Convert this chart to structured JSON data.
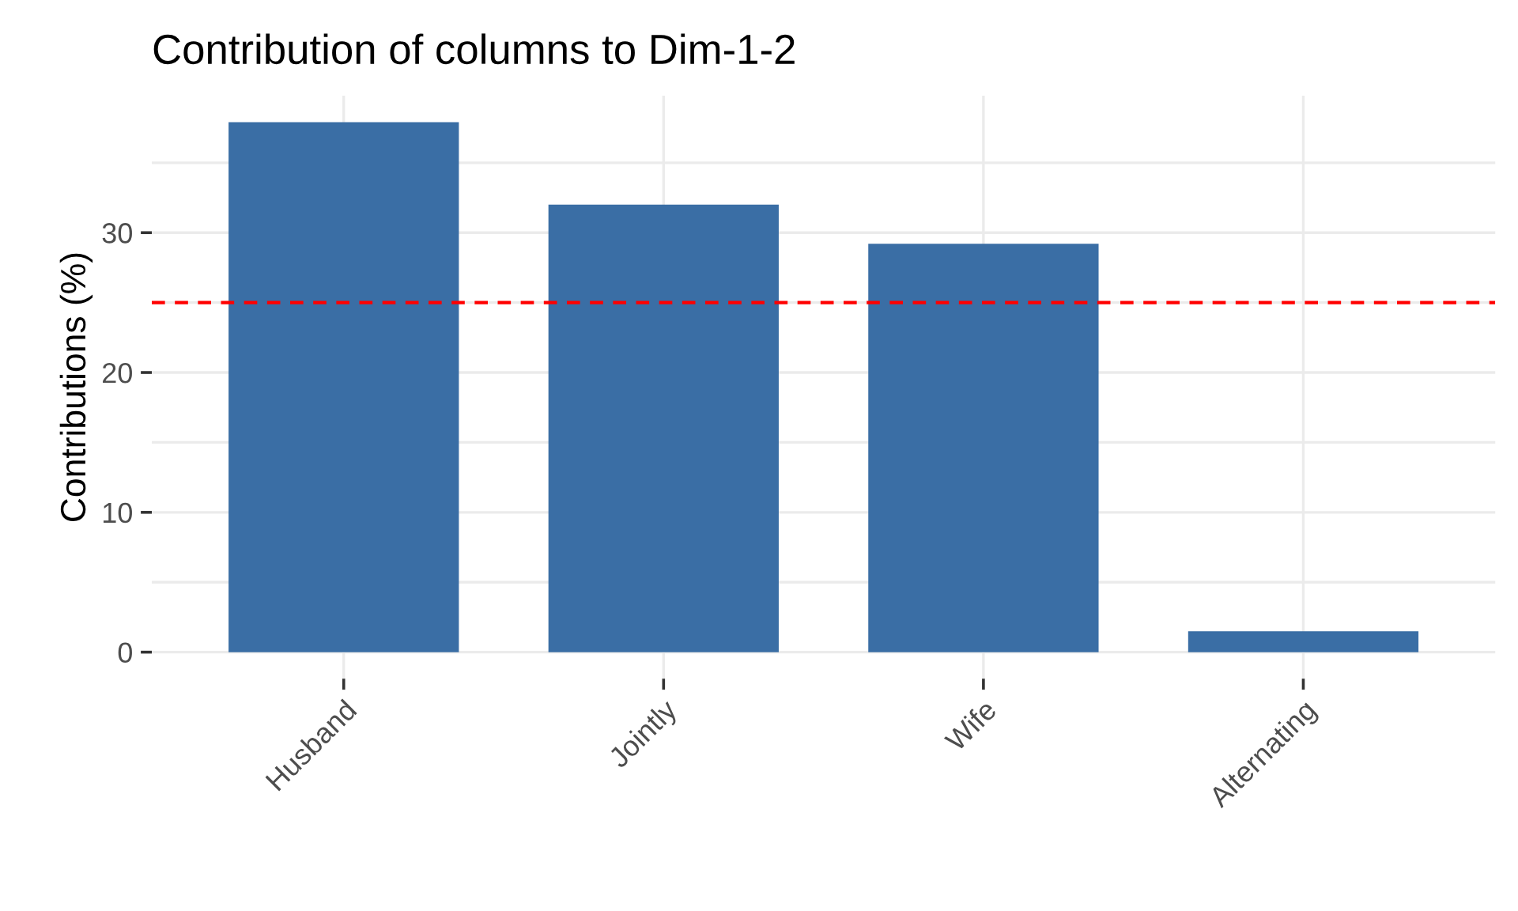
{
  "chart_data": {
    "type": "bar",
    "title": "Contribution of columns to Dim-1-2",
    "ylabel": "Contributions (%)",
    "categories": [
      "Husband",
      "Jointly",
      "Wife",
      "Alternating"
    ],
    "values": [
      37.9,
      32.0,
      29.2,
      1.5
    ],
    "color": "#3a6ea5",
    "ylim": [
      -1.9,
      39.8
    ],
    "yticks": [
      0,
      {
        "value": 5,
        "label": null
      },
      10,
      {
        "value": 15,
        "label": null
      },
      20,
      {
        "value": 25,
        "label": null
      },
      30,
      {
        "value": 35,
        "label": null
      }
    ],
    "grid": true,
    "ref_lines": [
      {
        "axis": "y",
        "value": 25,
        "color": "#ff0000",
        "line_style": "dashed"
      }
    ]
  }
}
